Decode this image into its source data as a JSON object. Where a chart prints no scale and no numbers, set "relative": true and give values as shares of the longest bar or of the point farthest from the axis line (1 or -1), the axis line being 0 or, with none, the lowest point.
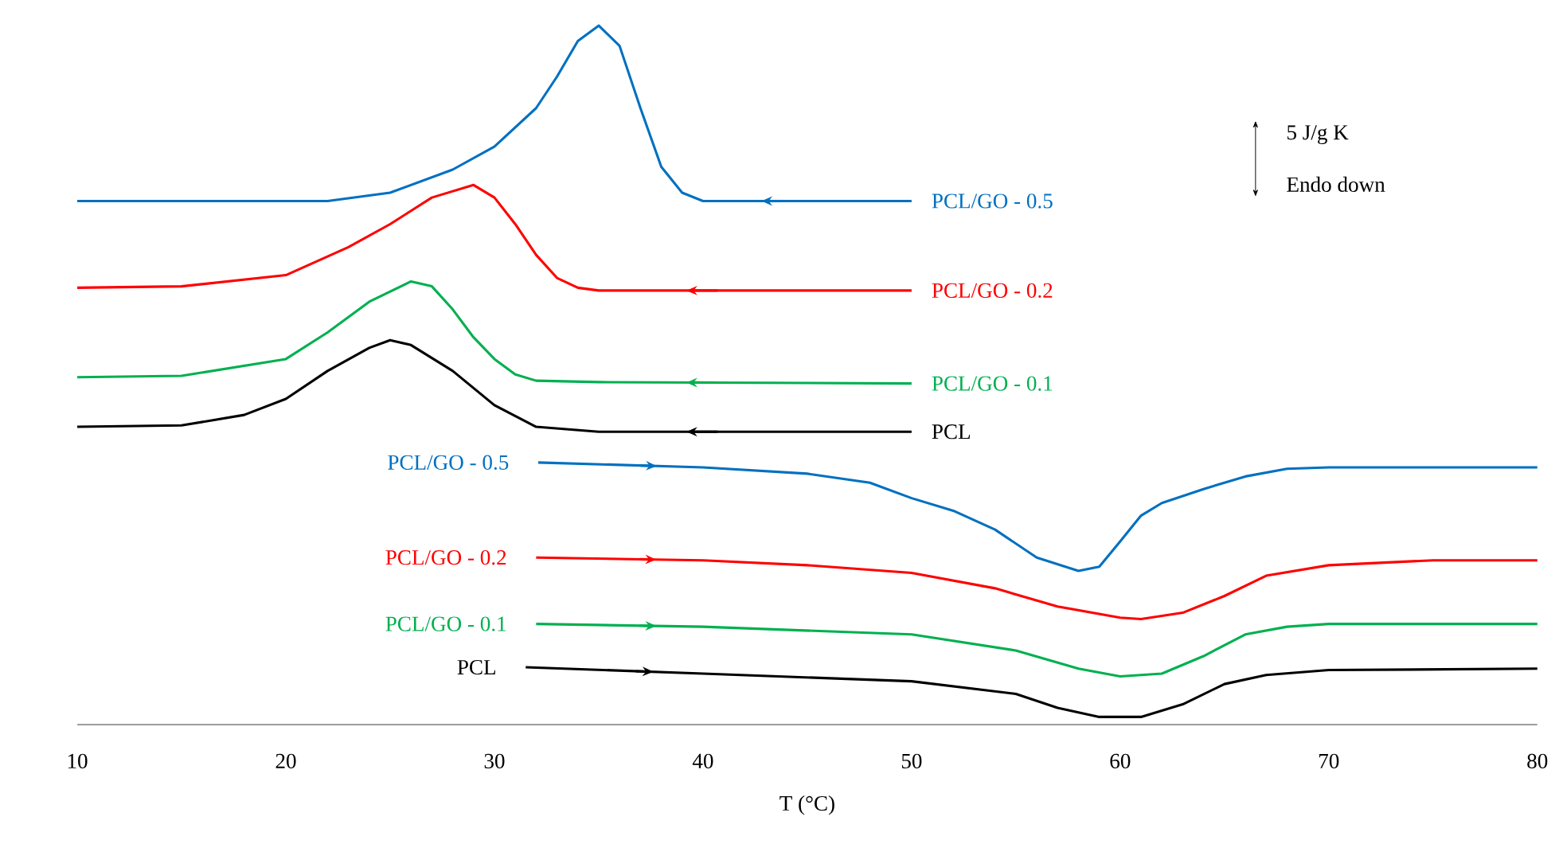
{
  "chart_data": {
    "type": "line",
    "relative": true,
    "xlabel": "T (°C)",
    "xlim": [
      10,
      80
    ],
    "xticks": [
      10,
      20,
      30,
      40,
      50,
      60,
      70,
      80
    ],
    "line_style": "solid",
    "annotations": [
      "5 J/g K",
      "Endo down"
    ],
    "series": [
      {
        "name": "PCL/GO - 0.5",
        "color": "#0070c0",
        "x": [
          50,
          40,
          39,
          38,
          37,
          36,
          35,
          34,
          33,
          32,
          30,
          28,
          25,
          22,
          10
        ],
        "values": [
          0.749,
          0.749,
          0.761,
          0.798,
          0.882,
          0.971,
          1.0,
          0.978,
          0.927,
          0.882,
          0.827,
          0.794,
          0.761,
          0.749,
          0.749
        ]
      },
      {
        "name": "PCL/GO - 0.2",
        "color": "#ff0000",
        "x": [
          50,
          35,
          34,
          33,
          32,
          31,
          30,
          29,
          27,
          25,
          23,
          20,
          15,
          10
        ],
        "values": [
          0.621,
          0.621,
          0.625,
          0.639,
          0.672,
          0.716,
          0.754,
          0.772,
          0.754,
          0.716,
          0.683,
          0.643,
          0.627,
          0.625
        ]
      },
      {
        "name": "PCL/GO - 0.1",
        "color": "#00b050",
        "x": [
          50,
          35,
          32,
          31,
          30,
          29,
          28,
          27,
          26,
          24,
          22,
          20,
          15,
          10
        ],
        "values": [
          0.488,
          0.49,
          0.492,
          0.501,
          0.523,
          0.554,
          0.594,
          0.627,
          0.634,
          0.605,
          0.561,
          0.523,
          0.499,
          0.497
        ]
      },
      {
        "name": "PCL",
        "color": "#000000",
        "x": [
          50,
          35,
          32,
          30,
          28,
          26,
          25,
          24,
          22,
          20,
          18,
          15,
          10
        ],
        "values": [
          0.419,
          0.419,
          0.426,
          0.457,
          0.506,
          0.543,
          0.55,
          0.539,
          0.506,
          0.466,
          0.443,
          0.428,
          0.426
        ]
      },
      {
        "name": "PCL/GO - 0.5",
        "color": "#0070c0",
        "x": [
          32.1,
          40,
          45,
          48,
          50,
          52,
          54,
          56,
          58,
          59,
          60,
          61,
          62,
          64,
          66,
          68,
          70,
          80
        ],
        "values": [
          0.375,
          0.368,
          0.359,
          0.346,
          0.324,
          0.306,
          0.279,
          0.239,
          0.22,
          0.226,
          0.262,
          0.299,
          0.317,
          0.337,
          0.355,
          0.366,
          0.368,
          0.368
        ]
      },
      {
        "name": "PCL/GO - 0.2",
        "color": "#ff0000",
        "x": [
          32,
          40,
          45,
          50,
          54,
          57,
          60,
          61,
          63,
          65,
          67,
          70,
          75,
          80
        ],
        "values": [
          0.239,
          0.235,
          0.228,
          0.217,
          0.195,
          0.169,
          0.153,
          0.151,
          0.16,
          0.184,
          0.213,
          0.228,
          0.235,
          0.235
        ]
      },
      {
        "name": "PCL/GO - 0.1",
        "color": "#00b050",
        "x": [
          32,
          40,
          50,
          55,
          58,
          60,
          62,
          64,
          66,
          68,
          70,
          80
        ],
        "values": [
          0.144,
          0.14,
          0.129,
          0.106,
          0.08,
          0.069,
          0.073,
          0.098,
          0.129,
          0.14,
          0.144,
          0.144
        ]
      },
      {
        "name": "PCL",
        "color": "#000000",
        "x": [
          31.5,
          40,
          50,
          55,
          57,
          59,
          61,
          63,
          65,
          67,
          70,
          80
        ],
        "values": [
          0.082,
          0.073,
          0.062,
          0.044,
          0.024,
          0.011,
          0.011,
          0.029,
          0.058,
          0.071,
          0.078,
          0.08
        ]
      }
    ]
  }
}
